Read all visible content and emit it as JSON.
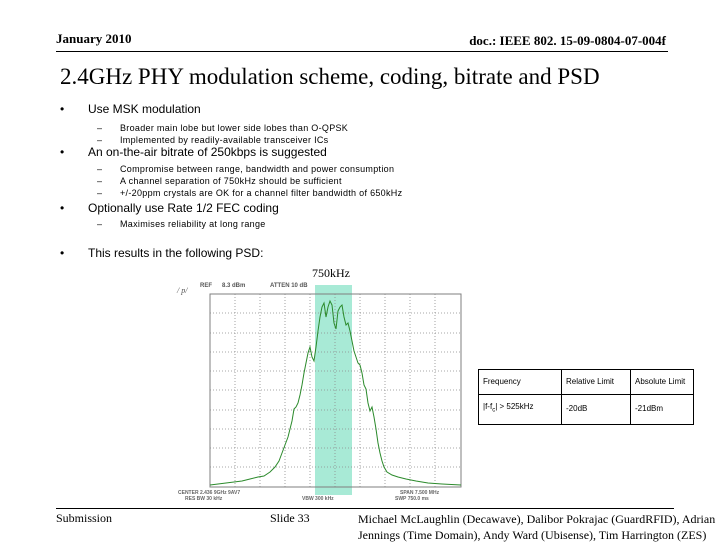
{
  "header": {
    "date": "January 2010",
    "doc_id": "doc.: IEEE 802. 15-09-0804-07-004f"
  },
  "title": "2.4GHz PHY modulation scheme, coding, bitrate and PSD",
  "bullets": [
    {
      "text": "Use MSK modulation",
      "subs": [
        "Broader main lobe but lower side lobes than O-QPSK",
        "Implemented by readily-available transceiver ICs"
      ]
    },
    {
      "text": "An on-the-air bitrate of 250kbps is suggested",
      "subs": [
        "Compromise between range, bandwidth and power consumption",
        "A channel separation of 750kHz should be sufficient",
        "+/-20ppm crystals are OK for a channel filter bandwidth of 650kHz"
      ]
    },
    {
      "text": "Optionally use Rate 1/2 FEC coding",
      "subs": [
        "Maximises reliability at long range"
      ]
    },
    {
      "text": "This results in the following PSD:",
      "subs": []
    }
  ],
  "bullet_glyph": "•",
  "sub_glyph": "–",
  "psd": {
    "bandwidth_label": "750kHz",
    "ref_label": "REF",
    "ref_value": "8.3 dBm",
    "atten_label": "ATTEN 10 dB",
    "y_axis_label": "/ p/",
    "bottom_labels": [
      "CENTER 2.436 9GHz 9AV7",
      "RES BW 30 kHz",
      "VBW 300 kHz",
      "SPAN 7.500 MHz",
      "SWP 750.0 ms"
    ],
    "colors": {
      "trace": "#2b8a2b",
      "band_highlight": "#a8ead6",
      "grid": "#7f7f7f"
    }
  },
  "limits_table": {
    "headers": [
      "Frequency",
      "Relative Limit",
      "Absolute Limit"
    ],
    "row": {
      "freq_prefix": "|f-f",
      "freq_sub": "c",
      "freq_suffix": "| > 525kHz",
      "relative": "-20dB",
      "absolute": "-21dBm"
    }
  },
  "footer": {
    "left": "Submission",
    "center": "Slide 33",
    "authors_line1": "Michael McLaughlin (Decawave), Dalibor Pokrajac (GuardRFID), Adrian",
    "authors_line2": "Jennings (Time Domain), Andy Ward (Ubisense), Tim Harrington (ZES)"
  }
}
